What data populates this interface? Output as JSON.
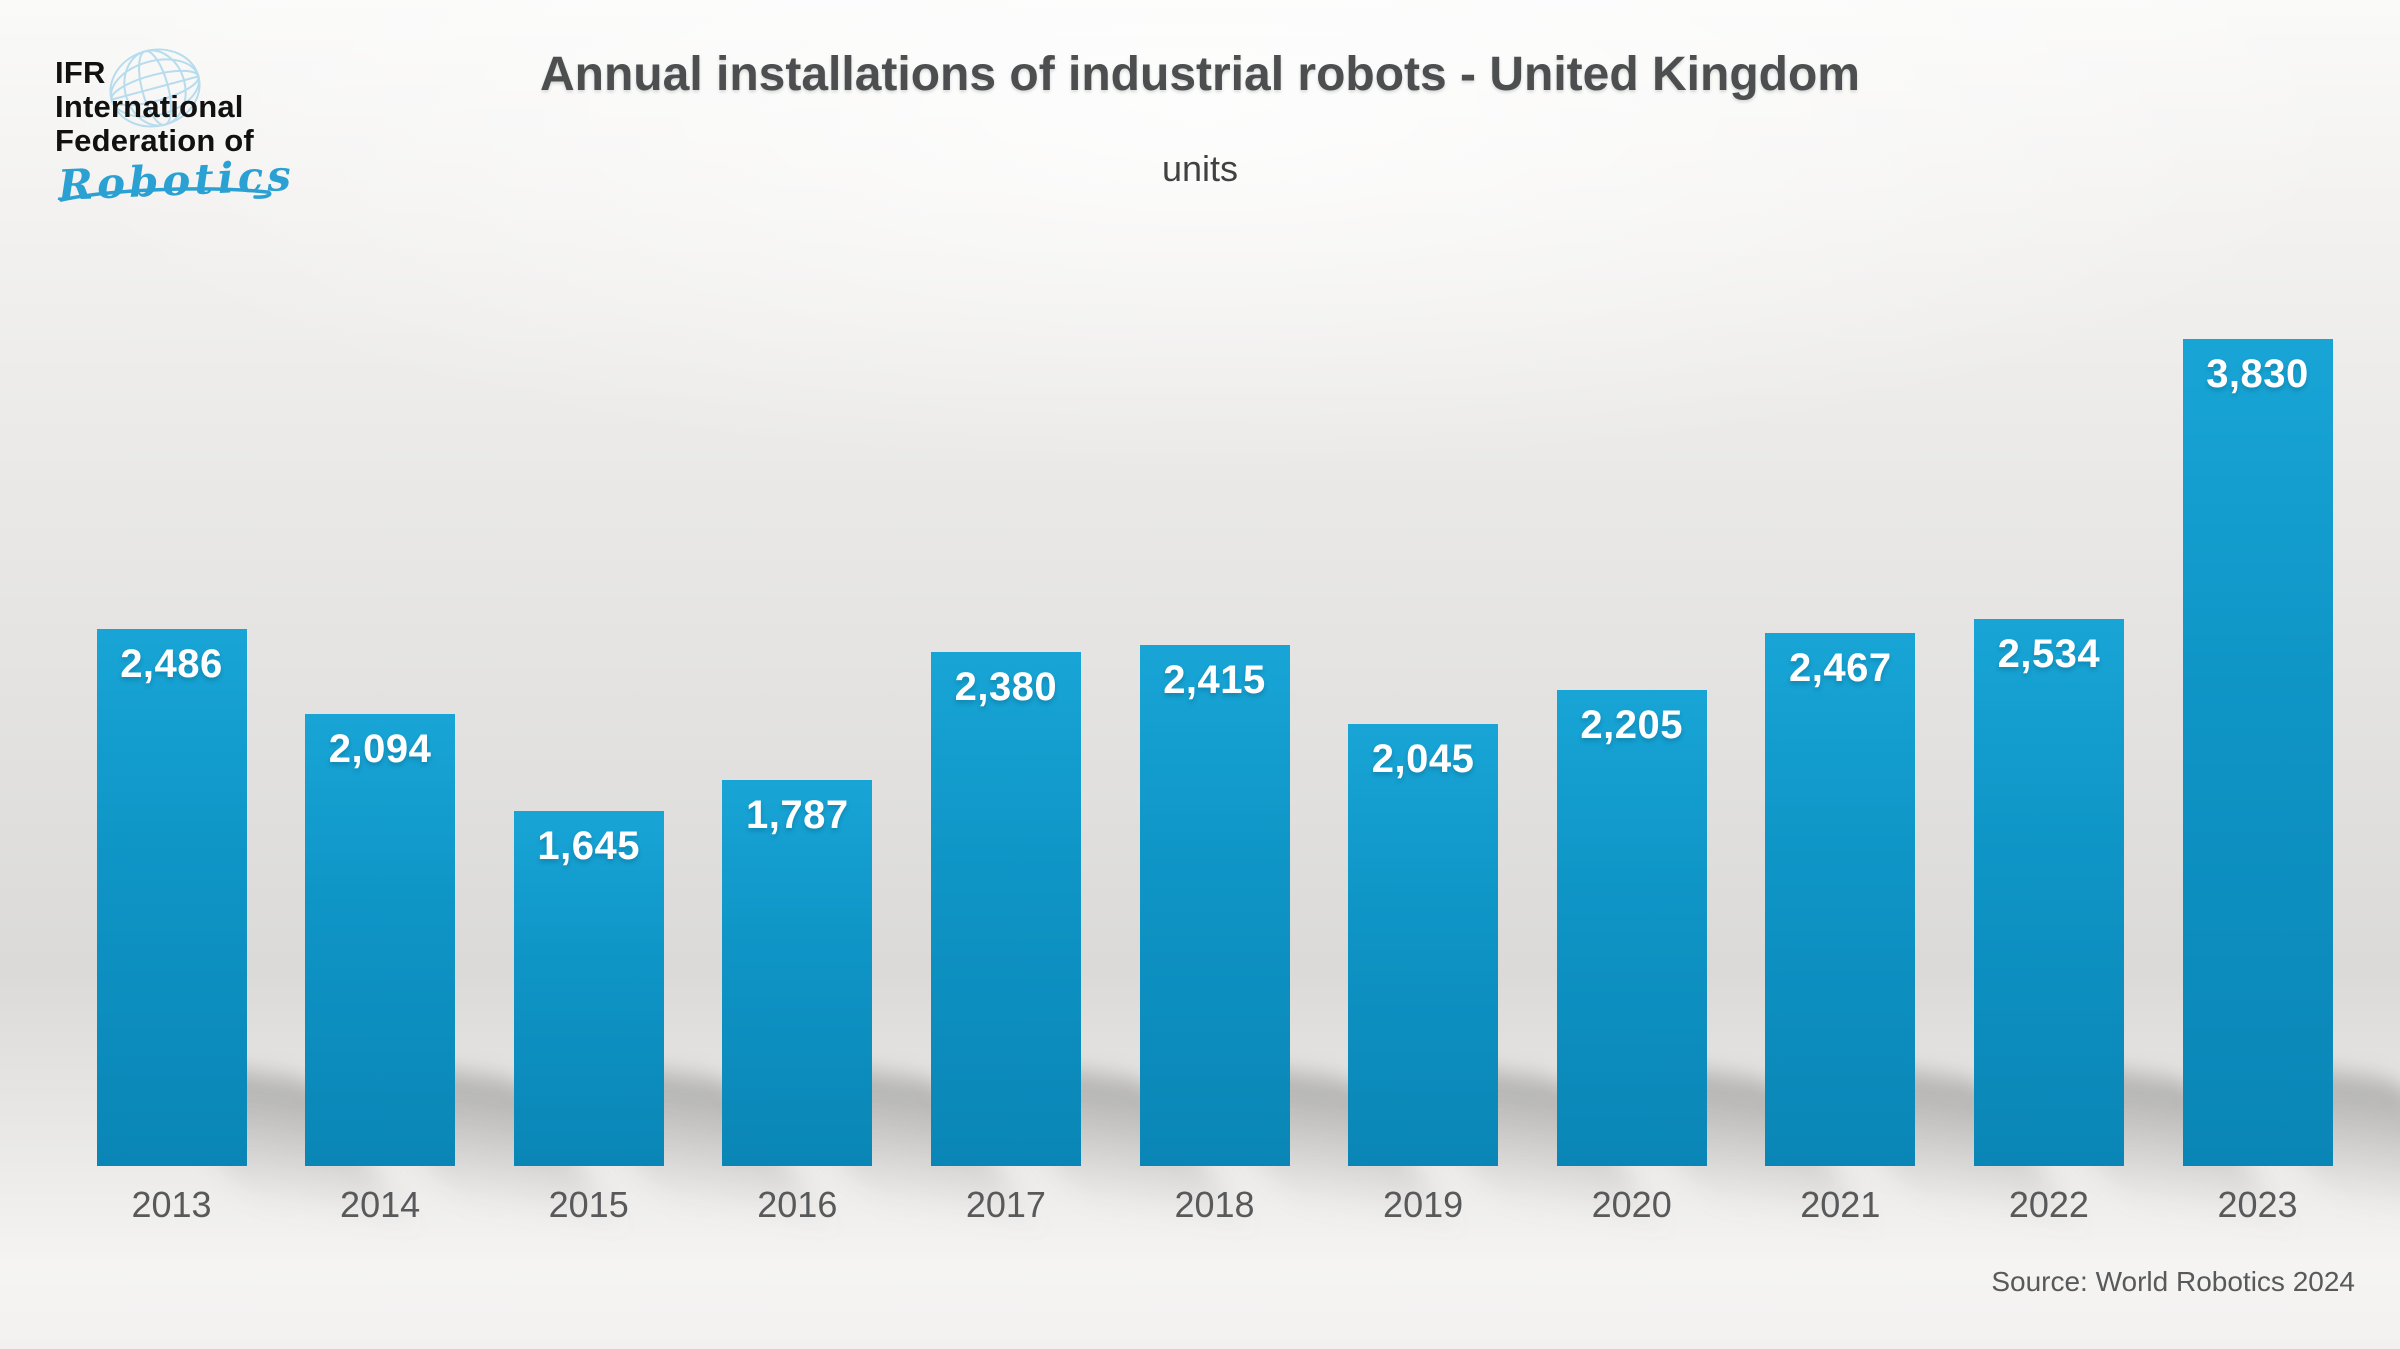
{
  "logo": {
    "line1": "IFR",
    "line2": "International",
    "line3": "Federation of",
    "script": "Robotics",
    "globe_color": "#b7dcee",
    "script_color": "#2ba0d2"
  },
  "header": {
    "title": "Annual installations of industrial robots - United Kingdom",
    "subtitle": "units"
  },
  "footer": {
    "source": "Source: World Robotics 2024"
  },
  "chart_data": {
    "type": "bar",
    "title": "Annual installations of industrial robots - United Kingdom",
    "ylabel": "units",
    "xlabel": "",
    "grid": false,
    "legend": null,
    "ylim": [
      0,
      5400
    ],
    "categories": [
      "2013",
      "2014",
      "2015",
      "2016",
      "2017",
      "2018",
      "2019",
      "2020",
      "2021",
      "2022",
      "2023"
    ],
    "values": [
      2486,
      2094,
      1645,
      1787,
      2380,
      2415,
      2045,
      2205,
      2467,
      2534,
      3830
    ],
    "value_labels": [
      "2,486",
      "2,094",
      "1,645",
      "1,787",
      "2,380",
      "2,415",
      "2,045",
      "2,205",
      "2,467",
      "2,534",
      "3,830"
    ],
    "bar_color": "#0e95c6",
    "value_label_color": "#ffffff",
    "axis_label_color": "#58595b",
    "title_color": "#4d4e50"
  }
}
